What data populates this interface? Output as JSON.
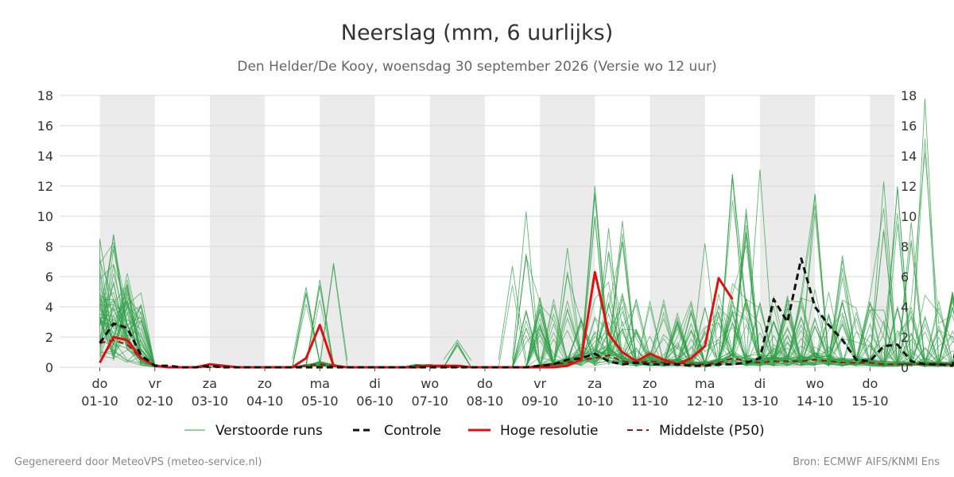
{
  "chart_data": {
    "type": "line",
    "title": "Neerslag (mm, 6 uurlijks)",
    "subtitle": "Den Helder/De Kooy, woensdag 30 september 2026 (Versie wo 12 uur)",
    "x_step_hours": 6,
    "x_labels": [
      {
        "day": "do",
        "date": "01-10"
      },
      {
        "day": "vr",
        "date": "02-10"
      },
      {
        "day": "za",
        "date": "03-10"
      },
      {
        "day": "zo",
        "date": "04-10"
      },
      {
        "day": "ma",
        "date": "05-10"
      },
      {
        "day": "di",
        "date": "06-10"
      },
      {
        "day": "wo",
        "date": "07-10"
      },
      {
        "day": "do",
        "date": "08-10"
      },
      {
        "day": "vr",
        "date": "09-10"
      },
      {
        "day": "za",
        "date": "10-10"
      },
      {
        "day": "zo",
        "date": "11-10"
      },
      {
        "day": "ma",
        "date": "12-10"
      },
      {
        "day": "di",
        "date": "13-10"
      },
      {
        "day": "wo",
        "date": "14-10"
      },
      {
        "day": "do",
        "date": "15-10"
      }
    ],
    "shaded_bands": [
      "01-10",
      "03-10",
      "05-10",
      "07-10",
      "09-10",
      "11-10",
      "13-10",
      "15-10"
    ],
    "ylim": [
      0,
      18
    ],
    "yticks": [
      0,
      2,
      4,
      6,
      8,
      10,
      12,
      14,
      16,
      18
    ],
    "grid": true,
    "legend_position": "bottom",
    "series": [
      {
        "name": "Controle",
        "style": "dashed",
        "color": "#111111",
        "values": [
          1.6,
          2.9,
          2.6,
          0.8,
          0.1,
          0.1,
          0,
          0,
          0.1,
          0,
          0,
          0,
          0,
          0,
          0,
          0,
          0,
          0,
          0,
          0,
          0,
          0,
          0,
          0,
          0,
          0,
          0,
          0,
          0,
          0,
          0,
          0,
          0.1,
          0.2,
          0.5,
          0.6,
          0.9,
          0.4,
          0.2,
          0.3,
          0.2,
          0.2,
          0.2,
          0.1,
          0.1,
          0.2,
          0.2,
          0.3,
          0.6,
          4.5,
          3.0,
          7.2,
          4.0,
          2.8,
          1.8,
          0.5,
          0.4,
          1.4,
          1.5,
          0.4,
          0.2,
          0.2,
          0.1,
          4.5,
          1.7,
          1.3,
          1.7,
          5.3,
          1.0,
          3.4
        ]
      },
      {
        "name": "Hoge resolutie",
        "style": "solid",
        "color": "#e01010",
        "values": [
          0.3,
          2.0,
          1.8,
          0.6,
          0.1,
          0,
          0,
          0,
          0.2,
          0.1,
          0,
          0,
          0,
          0,
          0,
          0.6,
          2.8,
          0.1,
          0,
          0,
          0,
          0,
          0,
          0,
          0.1,
          0.1,
          0.1,
          0,
          0,
          0,
          0,
          0,
          0,
          0,
          0.1,
          0.5,
          6.3,
          2.2,
          1.0,
          0.4,
          0.9,
          0.5,
          0.2,
          0.6,
          1.4,
          5.9,
          4.5
        ]
      },
      {
        "name": "Middelste (P50)",
        "style": "dashed",
        "color": "#a01010",
        "values": [
          1.6,
          1.8,
          1.5,
          0.6,
          0.1,
          0,
          0,
          0,
          0,
          0,
          0,
          0,
          0,
          0,
          0,
          0.1,
          0.2,
          0.1,
          0,
          0,
          0,
          0,
          0,
          0.1,
          0.1,
          0,
          0,
          0,
          0,
          0,
          0,
          0,
          0.1,
          0.2,
          0.3,
          0.5,
          0.6,
          0.8,
          0.4,
          0.3,
          0.4,
          0.3,
          0.3,
          0.2,
          0.2,
          0.3,
          0.6,
          0.4,
          0.3,
          0.4,
          0.4,
          0.4,
          0.5,
          0.4,
          0.3,
          0.3,
          0.3,
          0.2,
          0.2,
          0.2,
          0.2,
          0.2,
          0.2,
          0.2,
          0.2,
          0.2,
          0.2,
          0.2,
          0.2,
          0.2
        ]
      }
    ],
    "ensemble": {
      "name": "Verstoorde runs",
      "color": "#2e9e45",
      "count": 50,
      "peaks": [
        {
          "x": 0,
          "max": 8.5
        },
        {
          "x": 1,
          "max": 8.8
        },
        {
          "x": 2,
          "max": 5.5
        },
        {
          "x": 15,
          "max": 5.3
        },
        {
          "x": 16,
          "max": 5.8
        },
        {
          "x": 17,
          "max": 6.9
        },
        {
          "x": 26,
          "max": 1.8
        },
        {
          "x": 30,
          "max": 6.7
        },
        {
          "x": 31,
          "max": 10.3
        },
        {
          "x": 34,
          "max": 7.9
        },
        {
          "x": 36,
          "max": 12.0
        },
        {
          "x": 37,
          "max": 9.2
        },
        {
          "x": 38,
          "max": 9.7
        },
        {
          "x": 44,
          "max": 8.2
        },
        {
          "x": 46,
          "max": 12.8
        },
        {
          "x": 47,
          "max": 10.5
        },
        {
          "x": 48,
          "max": 13.1
        },
        {
          "x": 52,
          "max": 11.5
        },
        {
          "x": 54,
          "max": 7.4
        },
        {
          "x": 57,
          "max": 12.3
        },
        {
          "x": 58,
          "max": 12.0
        },
        {
          "x": 59,
          "max": 9.6
        },
        {
          "x": 60,
          "max": 17.8
        },
        {
          "x": 62,
          "max": 5.0
        },
        {
          "x": 64,
          "max": 14.6
        },
        {
          "x": 65,
          "max": 6.6
        },
        {
          "x": 67,
          "max": 7.1
        },
        {
          "x": 68,
          "max": 11.0
        },
        {
          "x": 69,
          "max": 8.3
        }
      ]
    }
  },
  "legend": {
    "perturbed": "Verstoorde runs",
    "control": "Controle",
    "hires": "Hoge resolutie",
    "median": "Middelste (P50)"
  },
  "footer": {
    "left": "Gegenereerd door MeteoVPS (meteo-service.nl)",
    "right": "Bron: ECMWF AIFS/KNMI Ens"
  },
  "colors": {
    "band": "#ebebeb",
    "grid": "#d9d9d9",
    "ensemble": "#2e9e45",
    "control": "#111111",
    "hires": "#e01010",
    "median": "#a01010"
  }
}
